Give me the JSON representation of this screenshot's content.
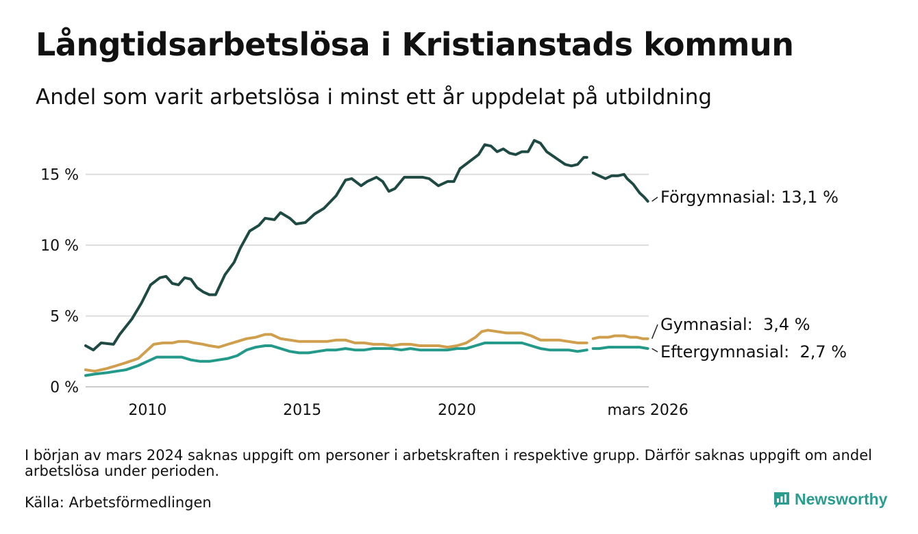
{
  "title": "Långtidsarbetslösa i Kristianstads kommun",
  "subtitle": "Andel som varit arbetslösa i minst ett år uppdelat på utbildning",
  "note": "I början av mars 2024 saknas uppgift om personer i arbetskraften i respektive grupp. Därför saknas uppgift om andel arbetslösa under perioden.",
  "source": "Källa: Arbetsförmedlingen",
  "brand": "Newsworthy",
  "chart_data": {
    "type": "line",
    "title": "Långtidsarbetslösa i Kristianstads kommun",
    "xlabel": "",
    "ylabel": "",
    "ylim": [
      0,
      17.5
    ],
    "xlim": [
      2008.0,
      2026.2
    ],
    "yticks": [
      {
        "value": 0,
        "label": "0 %"
      },
      {
        "value": 5,
        "label": "5 %"
      },
      {
        "value": 10,
        "label": "10 %"
      },
      {
        "value": 15,
        "label": "15 %"
      }
    ],
    "xticks": [
      {
        "value": 2010,
        "label": "2010"
      },
      {
        "value": 2015,
        "label": "2015"
      },
      {
        "value": 2020,
        "label": "2020"
      },
      {
        "value": 2026.17,
        "label": "mars 2026"
      }
    ],
    "grid": "horizontal",
    "series": [
      {
        "name": "Förgymnasial",
        "label": "Förgymnasial: 13,1 %",
        "color": "#1f4a44",
        "segments": [
          [
            [
              2008.0,
              2.9
            ],
            [
              2008.25,
              2.6
            ],
            [
              2008.5,
              3.1
            ],
            [
              2008.9,
              3.0
            ],
            [
              2009.1,
              3.7
            ],
            [
              2009.5,
              4.8
            ],
            [
              2009.8,
              5.9
            ],
            [
              2010.1,
              7.2
            ],
            [
              2010.4,
              7.7
            ],
            [
              2010.6,
              7.8
            ],
            [
              2010.8,
              7.3
            ],
            [
              2011.0,
              7.2
            ],
            [
              2011.2,
              7.7
            ],
            [
              2011.4,
              7.6
            ],
            [
              2011.6,
              7.0
            ],
            [
              2011.8,
              6.7
            ],
            [
              2012.0,
              6.5
            ],
            [
              2012.2,
              6.5
            ],
            [
              2012.5,
              7.9
            ],
            [
              2012.8,
              8.8
            ],
            [
              2013.0,
              9.8
            ],
            [
              2013.3,
              11.0
            ],
            [
              2013.6,
              11.4
            ],
            [
              2013.8,
              11.9
            ],
            [
              2014.1,
              11.8
            ],
            [
              2014.3,
              12.3
            ],
            [
              2014.6,
              11.9
            ],
            [
              2014.8,
              11.5
            ],
            [
              2015.1,
              11.6
            ],
            [
              2015.4,
              12.2
            ],
            [
              2015.7,
              12.6
            ],
            [
              2016.1,
              13.5
            ],
            [
              2016.4,
              14.6
            ],
            [
              2016.6,
              14.7
            ],
            [
              2016.9,
              14.2
            ],
            [
              2017.1,
              14.5
            ],
            [
              2017.4,
              14.8
            ],
            [
              2017.6,
              14.5
            ],
            [
              2017.8,
              13.8
            ],
            [
              2018.0,
              14.0
            ],
            [
              2018.3,
              14.8
            ],
            [
              2018.6,
              14.8
            ],
            [
              2018.9,
              14.8
            ],
            [
              2019.1,
              14.7
            ],
            [
              2019.4,
              14.2
            ],
            [
              2019.7,
              14.5
            ],
            [
              2019.9,
              14.5
            ],
            [
              2020.1,
              15.4
            ],
            [
              2020.4,
              15.9
            ],
            [
              2020.7,
              16.4
            ],
            [
              2020.9,
              17.1
            ],
            [
              2021.1,
              17.0
            ],
            [
              2021.3,
              16.6
            ],
            [
              2021.5,
              16.8
            ],
            [
              2021.7,
              16.5
            ],
            [
              2021.9,
              16.4
            ],
            [
              2022.1,
              16.6
            ],
            [
              2022.3,
              16.6
            ],
            [
              2022.5,
              17.4
            ],
            [
              2022.7,
              17.2
            ],
            [
              2022.9,
              16.6
            ],
            [
              2023.1,
              16.3
            ],
            [
              2023.3,
              16.0
            ],
            [
              2023.5,
              15.7
            ],
            [
              2023.7,
              15.6
            ],
            [
              2023.9,
              15.7
            ],
            [
              2024.1,
              16.2
            ],
            [
              2024.2,
              16.2
            ]
          ],
          [
            [
              2024.4,
              15.1
            ],
            [
              2024.6,
              14.9
            ],
            [
              2024.8,
              14.7
            ],
            [
              2025.0,
              14.9
            ],
            [
              2025.2,
              14.9
            ],
            [
              2025.4,
              15.0
            ],
            [
              2025.5,
              14.7
            ],
            [
              2025.7,
              14.3
            ],
            [
              2025.9,
              13.7
            ],
            [
              2026.05,
              13.4
            ],
            [
              2026.17,
              13.1
            ]
          ]
        ]
      },
      {
        "name": "Gymnasial",
        "label": "Gymnasial:  3,4 %",
        "color": "#cf9f4e",
        "segments": [
          [
            [
              2008.0,
              1.2
            ],
            [
              2008.3,
              1.1
            ],
            [
              2008.7,
              1.3
            ],
            [
              2009.0,
              1.5
            ],
            [
              2009.3,
              1.7
            ],
            [
              2009.7,
              2.0
            ],
            [
              2010.0,
              2.6
            ],
            [
              2010.2,
              3.0
            ],
            [
              2010.5,
              3.1
            ],
            [
              2010.8,
              3.1
            ],
            [
              2011.0,
              3.2
            ],
            [
              2011.3,
              3.2
            ],
            [
              2011.5,
              3.1
            ],
            [
              2011.8,
              3.0
            ],
            [
              2012.0,
              2.9
            ],
            [
              2012.3,
              2.8
            ],
            [
              2012.6,
              3.0
            ],
            [
              2012.9,
              3.2
            ],
            [
              2013.2,
              3.4
            ],
            [
              2013.5,
              3.5
            ],
            [
              2013.8,
              3.7
            ],
            [
              2014.0,
              3.7
            ],
            [
              2014.3,
              3.4
            ],
            [
              2014.6,
              3.3
            ],
            [
              2014.9,
              3.2
            ],
            [
              2015.2,
              3.2
            ],
            [
              2015.5,
              3.2
            ],
            [
              2015.8,
              3.2
            ],
            [
              2016.1,
              3.3
            ],
            [
              2016.4,
              3.3
            ],
            [
              2016.7,
              3.1
            ],
            [
              2017.0,
              3.1
            ],
            [
              2017.3,
              3.0
            ],
            [
              2017.6,
              3.0
            ],
            [
              2017.9,
              2.9
            ],
            [
              2018.2,
              3.0
            ],
            [
              2018.5,
              3.0
            ],
            [
              2018.8,
              2.9
            ],
            [
              2019.1,
              2.9
            ],
            [
              2019.4,
              2.9
            ],
            [
              2019.7,
              2.8
            ],
            [
              2020.0,
              2.9
            ],
            [
              2020.3,
              3.1
            ],
            [
              2020.6,
              3.5
            ],
            [
              2020.8,
              3.9
            ],
            [
              2021.0,
              4.0
            ],
            [
              2021.3,
              3.9
            ],
            [
              2021.6,
              3.8
            ],
            [
              2021.9,
              3.8
            ],
            [
              2022.1,
              3.8
            ],
            [
              2022.4,
              3.6
            ],
            [
              2022.7,
              3.3
            ],
            [
              2023.0,
              3.3
            ],
            [
              2023.3,
              3.3
            ],
            [
              2023.6,
              3.2
            ],
            [
              2023.9,
              3.1
            ],
            [
              2024.2,
              3.1
            ]
          ],
          [
            [
              2024.4,
              3.4
            ],
            [
              2024.6,
              3.5
            ],
            [
              2024.9,
              3.5
            ],
            [
              2025.1,
              3.6
            ],
            [
              2025.4,
              3.6
            ],
            [
              2025.6,
              3.5
            ],
            [
              2025.8,
              3.5
            ],
            [
              2026.0,
              3.4
            ],
            [
              2026.17,
              3.4
            ]
          ]
        ]
      },
      {
        "name": "Eftergymnasial",
        "label": "Eftergymnasial:  2,7 %",
        "color": "#23998a",
        "segments": [
          [
            [
              2008.0,
              0.8
            ],
            [
              2008.3,
              0.9
            ],
            [
              2008.7,
              1.0
            ],
            [
              2009.0,
              1.1
            ],
            [
              2009.3,
              1.2
            ],
            [
              2009.7,
              1.5
            ],
            [
              2010.0,
              1.8
            ],
            [
              2010.3,
              2.1
            ],
            [
              2010.6,
              2.1
            ],
            [
              2010.9,
              2.1
            ],
            [
              2011.1,
              2.1
            ],
            [
              2011.4,
              1.9
            ],
            [
              2011.7,
              1.8
            ],
            [
              2012.0,
              1.8
            ],
            [
              2012.3,
              1.9
            ],
            [
              2012.6,
              2.0
            ],
            [
              2012.9,
              2.2
            ],
            [
              2013.2,
              2.6
            ],
            [
              2013.5,
              2.8
            ],
            [
              2013.8,
              2.9
            ],
            [
              2014.0,
              2.9
            ],
            [
              2014.3,
              2.7
            ],
            [
              2014.6,
              2.5
            ],
            [
              2014.9,
              2.4
            ],
            [
              2015.2,
              2.4
            ],
            [
              2015.5,
              2.5
            ],
            [
              2015.8,
              2.6
            ],
            [
              2016.1,
              2.6
            ],
            [
              2016.4,
              2.7
            ],
            [
              2016.7,
              2.6
            ],
            [
              2017.0,
              2.6
            ],
            [
              2017.3,
              2.7
            ],
            [
              2017.6,
              2.7
            ],
            [
              2017.9,
              2.7
            ],
            [
              2018.2,
              2.6
            ],
            [
              2018.5,
              2.7
            ],
            [
              2018.8,
              2.6
            ],
            [
              2019.1,
              2.6
            ],
            [
              2019.4,
              2.6
            ],
            [
              2019.7,
              2.6
            ],
            [
              2020.0,
              2.7
            ],
            [
              2020.3,
              2.7
            ],
            [
              2020.6,
              2.9
            ],
            [
              2020.9,
              3.1
            ],
            [
              2021.2,
              3.1
            ],
            [
              2021.5,
              3.1
            ],
            [
              2021.8,
              3.1
            ],
            [
              2022.1,
              3.1
            ],
            [
              2022.4,
              2.9
            ],
            [
              2022.7,
              2.7
            ],
            [
              2023.0,
              2.6
            ],
            [
              2023.3,
              2.6
            ],
            [
              2023.6,
              2.6
            ],
            [
              2023.9,
              2.5
            ],
            [
              2024.2,
              2.6
            ]
          ],
          [
            [
              2024.4,
              2.7
            ],
            [
              2024.6,
              2.7
            ],
            [
              2024.9,
              2.8
            ],
            [
              2025.1,
              2.8
            ],
            [
              2025.4,
              2.8
            ],
            [
              2025.7,
              2.8
            ],
            [
              2025.9,
              2.8
            ],
            [
              2026.17,
              2.7
            ]
          ]
        ]
      }
    ]
  }
}
